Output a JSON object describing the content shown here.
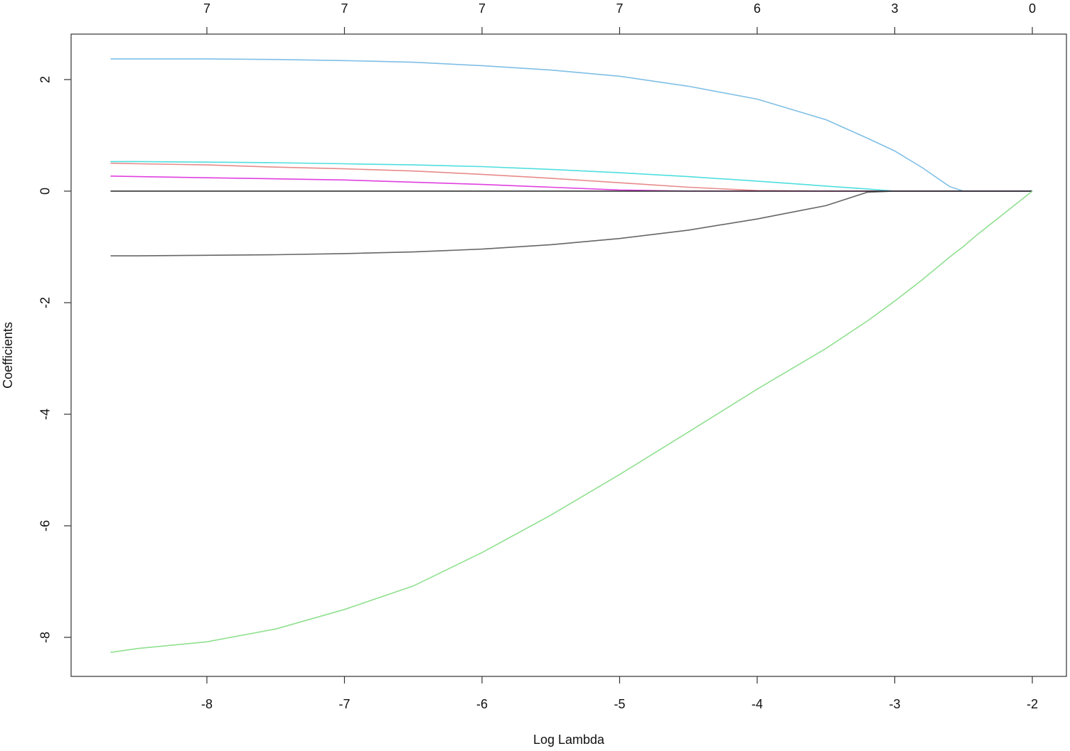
{
  "chart_data": {
    "type": "line",
    "x_label": "Log Lambda",
    "y_label": "Coefficients",
    "x": [
      -8.7,
      -8.5,
      -8,
      -7.5,
      -7,
      -6.5,
      -6,
      -5.5,
      -5,
      -4.5,
      -4,
      -3.5,
      -3.2,
      -3,
      -2.8,
      -2.6,
      -2.5,
      -2.4,
      -2.2,
      -2
    ],
    "series": [
      {
        "color": "#7fbfe6",
        "values": [
          2.37,
          2.37,
          2.37,
          2.36,
          2.34,
          2.31,
          2.25,
          2.17,
          2.06,
          1.88,
          1.65,
          1.28,
          0.95,
          0.72,
          0.42,
          0.08,
          0,
          0,
          0,
          0
        ]
      },
      {
        "color": "#e88a8a",
        "values": [
          0.5,
          0.49,
          0.47,
          0.43,
          0.4,
          0.36,
          0.3,
          0.23,
          0.15,
          0.07,
          0.01,
          0,
          0,
          0,
          0,
          0,
          0,
          0,
          0,
          0
        ]
      },
      {
        "color": "#4fdede",
        "values": [
          0.53,
          0.53,
          0.52,
          0.51,
          0.49,
          0.47,
          0.44,
          0.39,
          0.33,
          0.26,
          0.18,
          0.09,
          0.04,
          0,
          0,
          0,
          0,
          0,
          0,
          0
        ]
      },
      {
        "color": "#e040e0",
        "values": [
          0.27,
          0.26,
          0.24,
          0.22,
          0.2,
          0.16,
          0.12,
          0.07,
          0.02,
          0,
          0,
          0,
          0,
          0,
          0,
          0,
          0,
          0,
          0,
          0
        ]
      },
      {
        "color": "#666666",
        "values": [
          -1.16,
          -1.16,
          -1.15,
          -1.14,
          -1.12,
          -1.09,
          -1.04,
          -0.96,
          -0.85,
          -0.7,
          -0.5,
          -0.26,
          -0.02,
          0,
          0,
          0,
          0,
          0,
          0,
          0
        ]
      },
      {
        "color": "#222222",
        "values": [
          0,
          0,
          0,
          0,
          0,
          0,
          0,
          0,
          0,
          0,
          0,
          0,
          0,
          0,
          0,
          0,
          0,
          0,
          0,
          0
        ]
      },
      {
        "color": "#90e090",
        "values": [
          -8.27,
          -8.2,
          -8.08,
          -7.85,
          -7.5,
          -7.08,
          -6.48,
          -5.81,
          -5.08,
          -4.32,
          -3.55,
          -2.82,
          -2.33,
          -1.97,
          -1.59,
          -1.18,
          -0.99,
          -0.78,
          -0.39,
          0
        ]
      }
    ],
    "xlim": [
      -8.987,
      -1.752
    ],
    "ylim": [
      -8.7,
      2.815
    ],
    "xticks": [
      -8,
      -7,
      -6,
      -5,
      -4,
      -3,
      -2
    ],
    "yticks": [
      -8,
      -6,
      -4,
      -2,
      0,
      2
    ],
    "x2ticks": [
      {
        "value": -8,
        "label": "7"
      },
      {
        "value": -7,
        "label": "7"
      },
      {
        "value": -6,
        "label": "7"
      },
      {
        "value": -5,
        "label": "7"
      },
      {
        "value": -4,
        "label": "6"
      },
      {
        "value": -3,
        "label": "3"
      },
      {
        "value": -2,
        "label": "0"
      }
    ],
    "grid": false
  }
}
